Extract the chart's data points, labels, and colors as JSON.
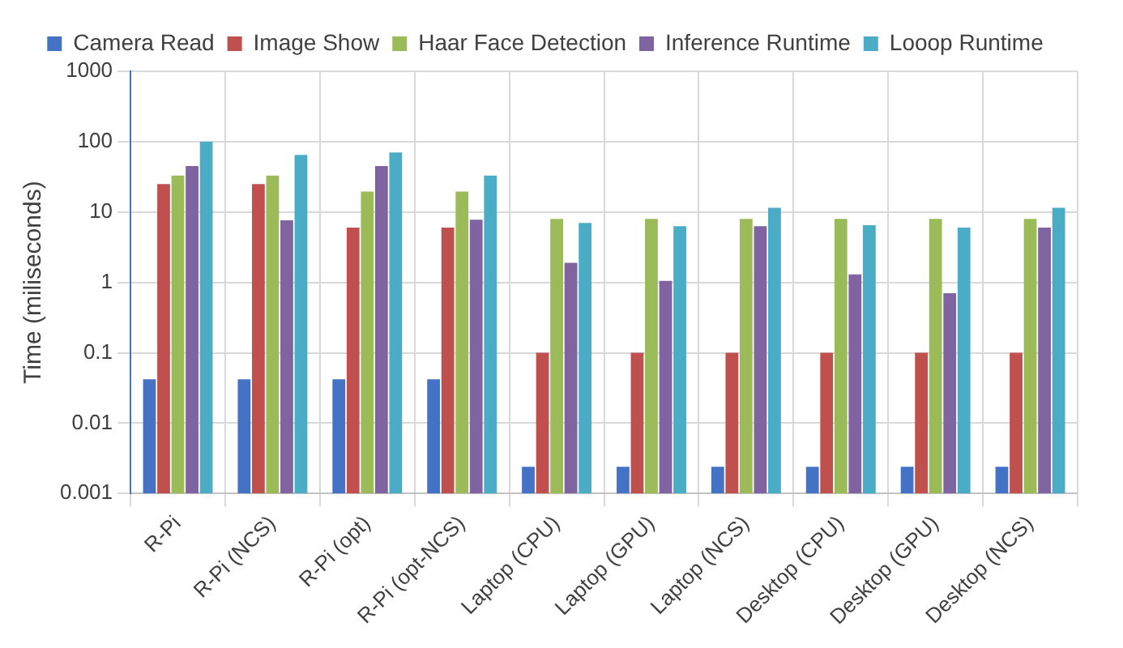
{
  "chart_data": {
    "type": "bar",
    "ylabel": "Time (miliseconds)",
    "categories": [
      "R-Pi",
      "R-Pi (NCS)",
      "R-Pi (opt)",
      "R-Pi (opt-NCS)",
      "Laptop (CPU)",
      "Laptop (GPU)",
      "Laptop (NCS)",
      "Desktop (CPU)",
      "Desktop (GPU)",
      "Desktop (NCS)"
    ],
    "series": [
      {
        "name": "Camera Read",
        "color": "#4472c4",
        "values": [
          0.042,
          0.042,
          0.042,
          0.042,
          0.0024,
          0.0024,
          0.0024,
          0.0024,
          0.0024,
          0.0024
        ]
      },
      {
        "name": "Image Show",
        "color": "#c0504d",
        "values": [
          25,
          25,
          6,
          6,
          0.1,
          0.1,
          0.1,
          0.1,
          0.1,
          0.1
        ]
      },
      {
        "name": "Haar Face Detection",
        "color": "#9bbb59",
        "values": [
          33,
          33,
          19.5,
          19.5,
          8,
          8,
          8,
          8,
          8,
          8
        ]
      },
      {
        "name": "Inference Runtime",
        "color": "#8064a2",
        "values": [
          45,
          7.6,
          45,
          7.8,
          1.9,
          1.05,
          6.3,
          1.3,
          0.7,
          6
        ]
      },
      {
        "name": "Looop Runtime",
        "color": "#4bacc6",
        "values": [
          100,
          65,
          70,
          33,
          7,
          6.3,
          11.5,
          6.5,
          6,
          11.5
        ]
      }
    ],
    "log": "y",
    "ylim": [
      0.001,
      1000
    ],
    "yticks": [
      0.001,
      0.01,
      0.1,
      1,
      10,
      100,
      1000
    ],
    "grid": true,
    "legend": "top"
  }
}
